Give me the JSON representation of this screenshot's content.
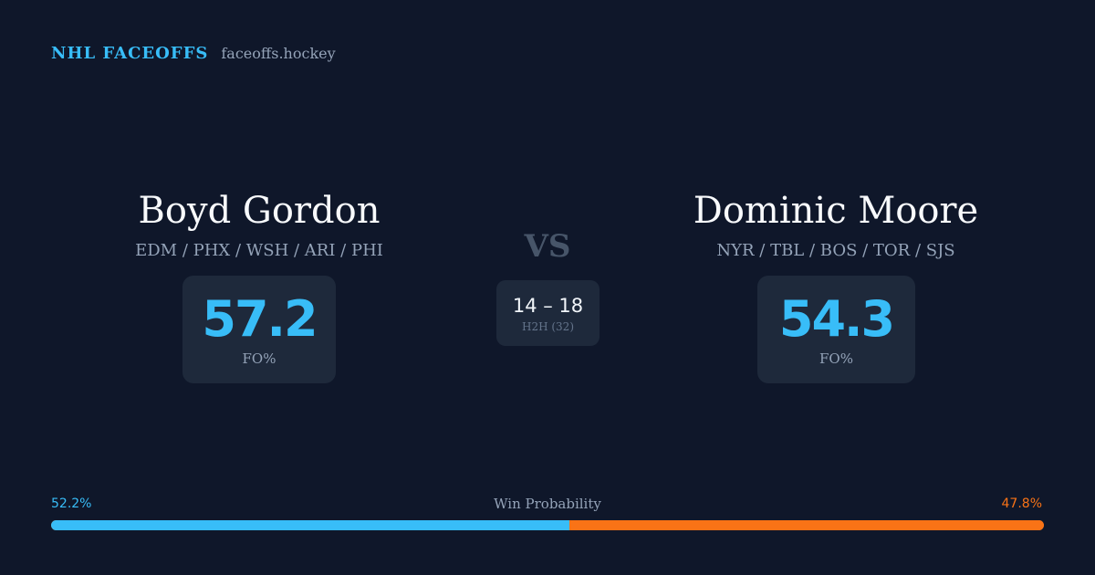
{
  "brand": {
    "name": "NHL FACEOFFS",
    "domain": "faceoffs.hockey"
  },
  "players": {
    "left": {
      "name": "Boyd Gordon",
      "teams": "EDM / PHX / WSH / ARI / PHI",
      "fo_pct": "57.2",
      "fo_label": "FO%"
    },
    "right": {
      "name": "Dominic Moore",
      "teams": "NYR / TBL / BOS / TOR / SJS",
      "fo_pct": "54.3",
      "fo_label": "FO%"
    }
  },
  "vs": "VS",
  "h2h": {
    "score": "14 – 18",
    "label": "H2H (32)"
  },
  "win_probability": {
    "title": "Win Probability",
    "left_label": "52.2%",
    "right_label": "47.8%",
    "left_value": 52.2,
    "right_value": 47.8
  },
  "colors": {
    "background": "#0f172a",
    "card": "#1e293b",
    "accent_blue": "#38bdf8",
    "accent_orange": "#f97316"
  }
}
